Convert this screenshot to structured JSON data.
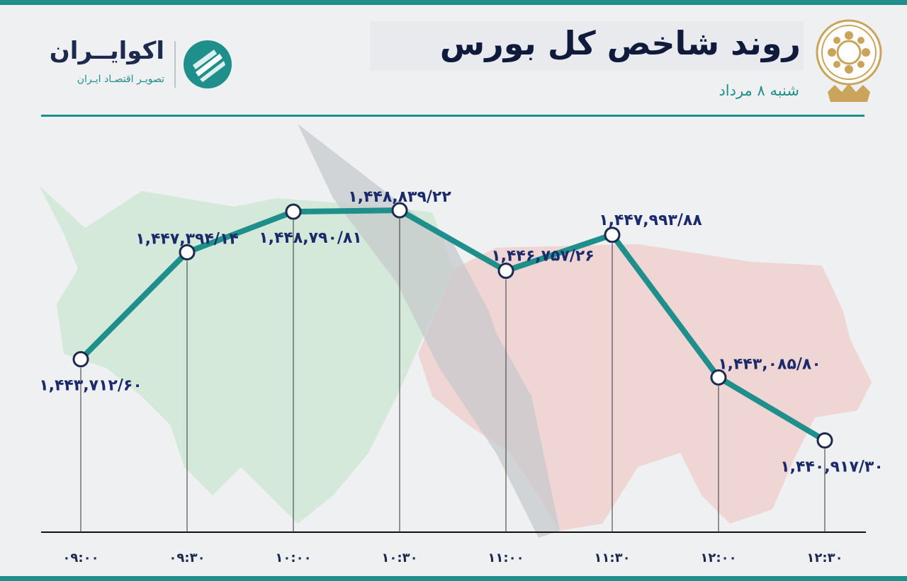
{
  "header": {
    "title": "روند شاخص کل بورس",
    "subtitle": "شنبه ۸ مرداد",
    "brand_name": "اکوایــران",
    "brand_tagline": "تصویـر اقتصـاد ایـران"
  },
  "colors": {
    "accent": "#1f8f8c",
    "line": "#1f8f8c",
    "label_text": "#1b2a6b",
    "bull_bg": "#cfe7d6",
    "bear_bg": "#efd2d2"
  },
  "icons": [
    "brand-logo-icon",
    "tehran-stock-exchange-emblem-icon",
    "bull-silhouette-icon",
    "bear-silhouette-icon"
  ],
  "chart_data": {
    "type": "line",
    "title": "روند شاخص کل بورس",
    "xlabel": "",
    "ylabel": "",
    "categories": [
      "۰۹:۰۰",
      "۰۹:۳۰",
      "۱۰:۰۰",
      "۱۰:۳۰",
      "۱۱:۰۰",
      "۱۱:۳۰",
      "۱۲:۰۰",
      "۱۲:۳۰"
    ],
    "values": [
      1443712.6,
      1447394.14,
      1448790.81,
      1448839.22,
      1446757.26,
      1447993.88,
      1443085.8,
      1440917.3
    ],
    "value_labels": [
      "۱,۴۴۳,۷۱۲/۶۰",
      "۱,۴۴۷,۳۹۴/۱۴",
      "۱,۴۴۸,۷۹۰/۸۱",
      "۱,۴۴۸,۸۳۹/۲۲",
      "۱,۴۴۶,۷۵۷/۲۶",
      "۱,۴۴۷,۹۹۳/۸۸",
      "۱,۴۴۳,۰۸۵/۸۰",
      "۱,۴۴۰,۹۱۷/۳۰"
    ],
    "grid": false,
    "legend": "none"
  }
}
